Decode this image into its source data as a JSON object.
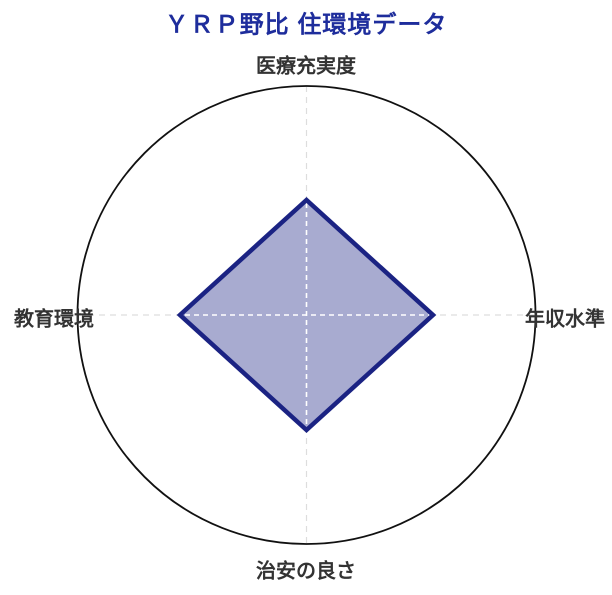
{
  "title": "ＹＲＰ野比 住環境データ",
  "colors": {
    "title": "#1e2d9c",
    "label": "#333333",
    "circle": "#111111",
    "grid": "#dddddd",
    "grid_inner": "#ffffff",
    "series_stroke": "#1b2383",
    "series_fill": "#a8abd0"
  },
  "chart_data": {
    "type": "radar",
    "title": "ＹＲＰ野比 住環境データ",
    "categories": [
      "医療充実度",
      "年収水準",
      "治安の良さ",
      "教育環境"
    ],
    "values": [
      50,
      55,
      50,
      55
    ],
    "max": 100,
    "axes_order": [
      "top",
      "right",
      "bottom",
      "left"
    ],
    "layout": {
      "outer_circle": true,
      "grid": "dashed-cross",
      "legend": "none"
    }
  }
}
